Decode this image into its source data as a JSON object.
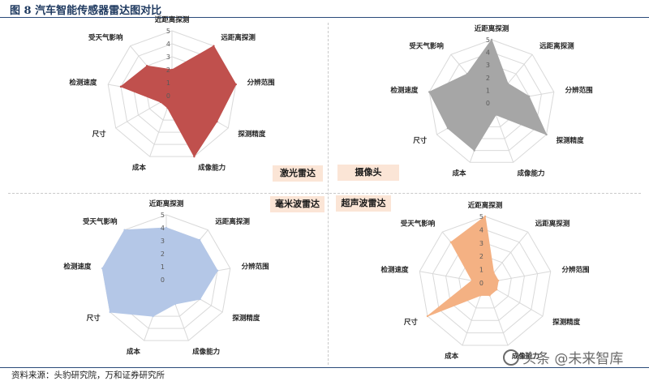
{
  "header": {
    "title": "图 8   汽车智能传感器雷达图对比"
  },
  "footer": {
    "source": "资料来源：头豹研究院，万和证券研究所"
  },
  "watermark": {
    "text": "头条 @未来智库"
  },
  "chart_data": [
    {
      "type": "radar",
      "title": "激光雷达",
      "axes": [
        "近距离探测",
        "远距离探测",
        "分辨范围",
        "探测精度",
        "成像能力",
        "成本",
        "尺寸",
        "检测速度",
        "受天气影响"
      ],
      "scale_ticks": [
        "0",
        "1",
        "2",
        "3",
        "4",
        "5"
      ],
      "ylim": [
        0,
        5
      ],
      "values": [
        2,
        5,
        5,
        4,
        5,
        1,
        1,
        4,
        3
      ],
      "color": "#c0504d"
    },
    {
      "type": "radar",
      "title": "摄像头",
      "axes": [
        "近距离探测",
        "远距离探测",
        "分辨范围",
        "探测精度",
        "成像能力",
        "成本",
        "尺寸",
        "检测速度",
        "受天气影响"
      ],
      "scale_ticks": [
        "0",
        "1",
        "2",
        "3",
        "4",
        "5"
      ],
      "ylim": [
        0,
        5
      ],
      "values": [
        5,
        2,
        3,
        5,
        1,
        4,
        4,
        5,
        3
      ],
      "color": "#a6a6a6"
    },
    {
      "type": "radar",
      "title": "毫米波雷达",
      "axes": [
        "近距离探测",
        "远距离探测",
        "分辨范围",
        "探测精度",
        "成像能力",
        "成本",
        "尺寸",
        "检测速度",
        "受天气影响"
      ],
      "scale_ticks": [
        "0",
        "1",
        "2",
        "3",
        "4",
        "5"
      ],
      "ylim": [
        0,
        5
      ],
      "values": [
        4,
        4,
        4,
        3,
        2,
        3,
        5,
        5,
        5
      ],
      "color": "#b4c7e7"
    },
    {
      "type": "radar",
      "title": "超声波雷达",
      "axes": [
        "近距离探测",
        "远距离探测",
        "分辨范围",
        "探测精度",
        "成像能力",
        "成本",
        "尺寸",
        "检测速度",
        "受天气影响"
      ],
      "scale_ticks": [
        "0",
        "1",
        "2",
        "3",
        "4",
        "5"
      ],
      "ylim": [
        0,
        5
      ],
      "values": [
        5,
        1,
        1,
        1,
        1,
        1,
        5,
        1,
        4
      ],
      "color": "#f4b183"
    }
  ]
}
